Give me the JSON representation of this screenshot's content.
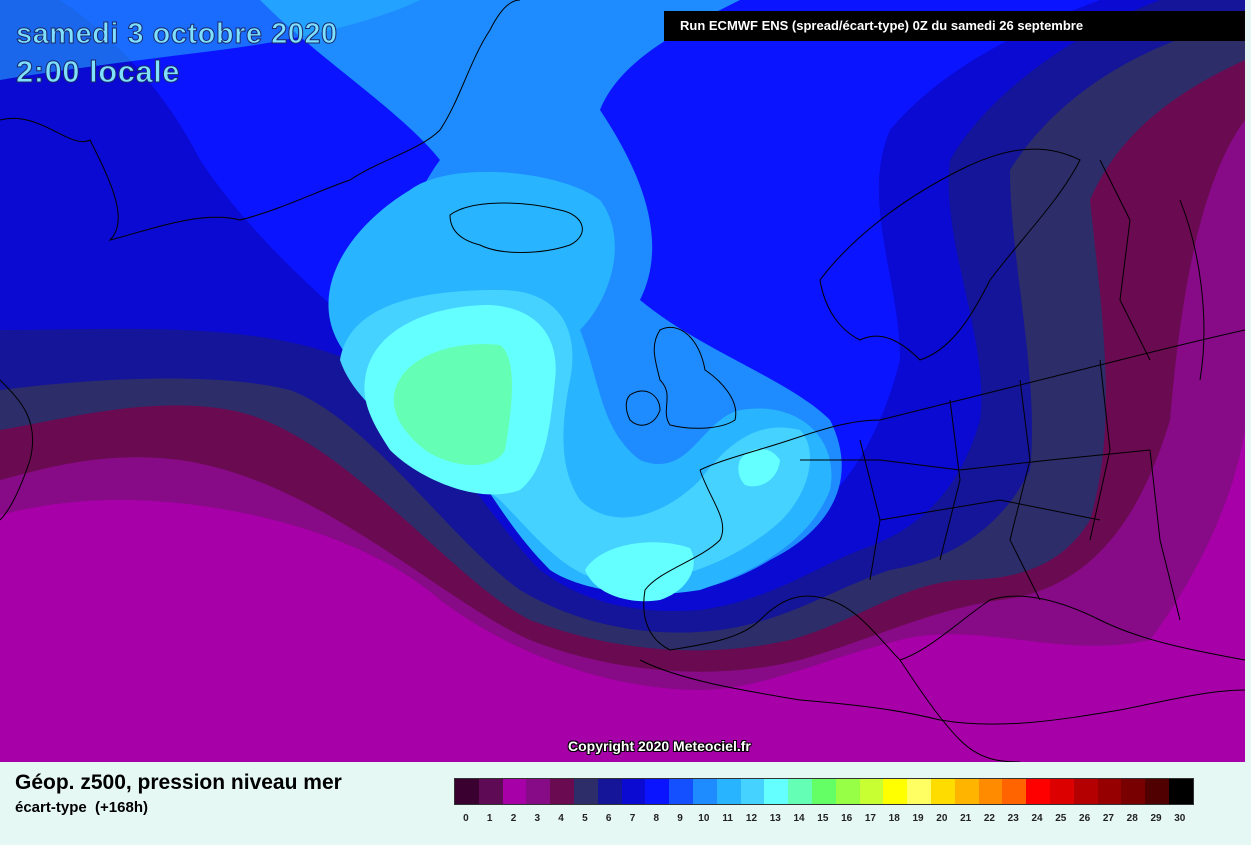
{
  "map": {
    "date_line": "samedi 3 octobre 2020",
    "time_line": "2:00 locale",
    "run_banner": "Run ECMWF ENS (spread/écart-type) 0Z du samedi 26 septembre",
    "copyright": "Copyright 2020 Meteociel.fr",
    "title": "Géop. z500, pression niveau mer",
    "subtitle": "écart-type  (+168h)"
  },
  "legend": {
    "labels": [
      "0",
      "1",
      "2",
      "3",
      "4",
      "5",
      "6",
      "7",
      "8",
      "9",
      "10",
      "11",
      "12",
      "13",
      "14",
      "15",
      "16",
      "17",
      "18",
      "19",
      "20",
      "21",
      "22",
      "23",
      "24",
      "25",
      "26",
      "27",
      "28",
      "29",
      "30"
    ],
    "colors": [
      "#3a0030",
      "#5e0a55",
      "#a800a8",
      "#870a87",
      "#6a0a50",
      "#2d2d6a",
      "#15159a",
      "#0a0ad2",
      "#0a14ff",
      "#1450ff",
      "#1e8cff",
      "#28b4ff",
      "#46d2ff",
      "#64ffff",
      "#64ffb4",
      "#64ff64",
      "#96ff46",
      "#c8ff32",
      "#ffff00",
      "#ffff64",
      "#ffdc00",
      "#ffb400",
      "#ff8c00",
      "#ff6400",
      "#ff0000",
      "#dc0000",
      "#b40000",
      "#960000",
      "#780000",
      "#500000",
      "#000000"
    ]
  },
  "colors": {
    "background": "#e6f8f3",
    "land_border": "#000000"
  }
}
